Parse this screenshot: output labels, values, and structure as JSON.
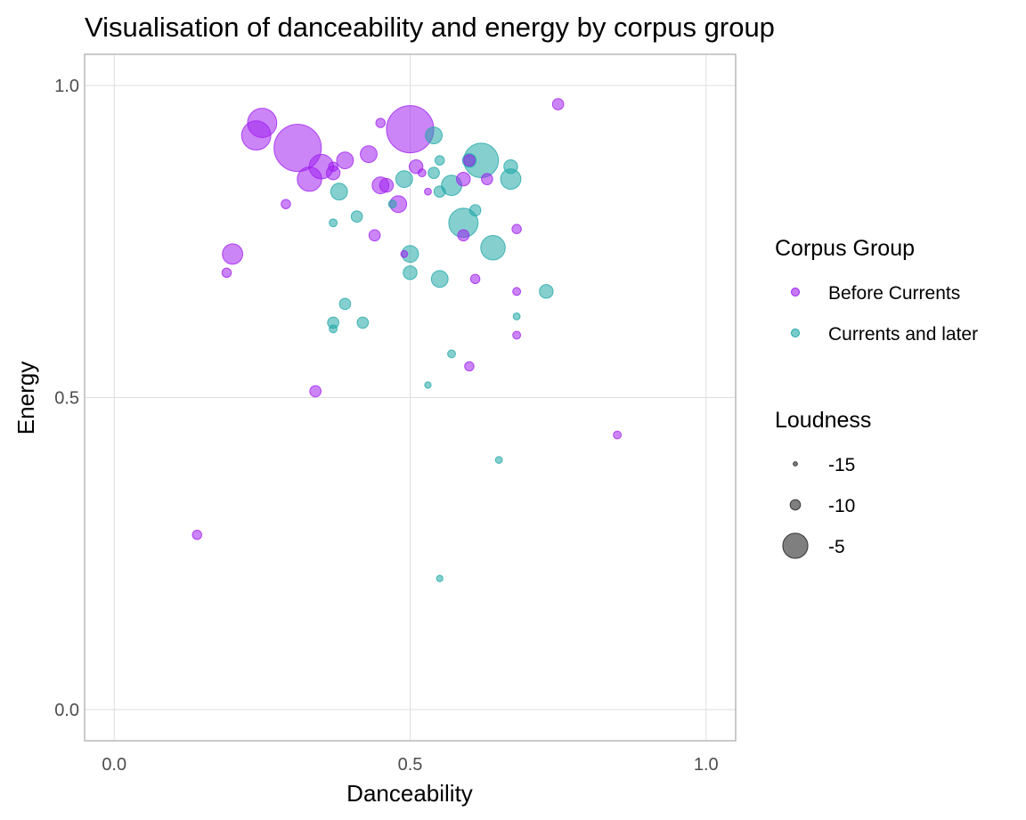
{
  "chart_data": {
    "type": "scatter",
    "title": "Visualisation of danceability and energy by corpus group",
    "xlabel": "Danceability",
    "ylabel": "Energy",
    "xlim": [
      -0.05,
      1.05
    ],
    "ylim": [
      -0.05,
      1.05
    ],
    "x_ticks": [
      0.0,
      0.5,
      1.0
    ],
    "y_ticks": [
      0.0,
      0.5,
      1.0
    ],
    "x_tick_labels": [
      "0.0",
      "0.5",
      "1.0"
    ],
    "y_tick_labels": [
      "0.0",
      "0.5",
      "1.0"
    ],
    "grid": true,
    "legend_placement": "right",
    "color_legend": {
      "title": "Corpus Group",
      "entries": [
        {
          "name": "Before Currents",
          "color": "#a020f0"
        },
        {
          "name": "Currents and later",
          "color": "#20a8a8"
        }
      ]
    },
    "size_legend": {
      "title": "Loudness",
      "entries": [
        {
          "label": "-15",
          "loudness": -15
        },
        {
          "label": "-10",
          "loudness": -10
        },
        {
          "label": "-5",
          "loudness": -5
        }
      ]
    },
    "series": [
      {
        "name": "Before Currents",
        "color": "#a020f0",
        "points": [
          {
            "x": 0.25,
            "y": 0.94,
            "loudness": -7
          },
          {
            "x": 0.24,
            "y": 0.92,
            "loudness": -7
          },
          {
            "x": 0.31,
            "y": 0.9,
            "loudness": -4
          },
          {
            "x": 0.5,
            "y": 0.93,
            "loudness": -4
          },
          {
            "x": 0.35,
            "y": 0.87,
            "loudness": -8
          },
          {
            "x": 0.33,
            "y": 0.85,
            "loudness": -8
          },
          {
            "x": 0.39,
            "y": 0.88,
            "loudness": -10
          },
          {
            "x": 0.43,
            "y": 0.89,
            "loudness": -10
          },
          {
            "x": 0.37,
            "y": 0.86,
            "loudness": -11
          },
          {
            "x": 0.37,
            "y": 0.87,
            "loudness": -13
          },
          {
            "x": 0.45,
            "y": 0.94,
            "loudness": -13
          },
          {
            "x": 0.75,
            "y": 0.97,
            "loudness": -12
          },
          {
            "x": 0.45,
            "y": 0.84,
            "loudness": -10
          },
          {
            "x": 0.46,
            "y": 0.84,
            "loudness": -11
          },
          {
            "x": 0.48,
            "y": 0.81,
            "loudness": -10
          },
          {
            "x": 0.51,
            "y": 0.87,
            "loudness": -11
          },
          {
            "x": 0.52,
            "y": 0.86,
            "loudness": -14
          },
          {
            "x": 0.53,
            "y": 0.83,
            "loudness": -15
          },
          {
            "x": 0.59,
            "y": 0.85,
            "loudness": -11
          },
          {
            "x": 0.6,
            "y": 0.88,
            "loudness": -12
          },
          {
            "x": 0.63,
            "y": 0.85,
            "loudness": -12
          },
          {
            "x": 0.29,
            "y": 0.81,
            "loudness": -13
          },
          {
            "x": 0.44,
            "y": 0.76,
            "loudness": -12
          },
          {
            "x": 0.59,
            "y": 0.76,
            "loudness": -12
          },
          {
            "x": 0.68,
            "y": 0.77,
            "loudness": -13
          },
          {
            "x": 0.2,
            "y": 0.73,
            "loudness": -9
          },
          {
            "x": 0.19,
            "y": 0.7,
            "loudness": -13
          },
          {
            "x": 0.49,
            "y": 0.73,
            "loudness": -15
          },
          {
            "x": 0.61,
            "y": 0.69,
            "loudness": -13
          },
          {
            "x": 0.68,
            "y": 0.67,
            "loudness": -14
          },
          {
            "x": 0.68,
            "y": 0.6,
            "loudness": -14
          },
          {
            "x": 0.6,
            "y": 0.55,
            "loudness": -13
          },
          {
            "x": 0.34,
            "y": 0.51,
            "loudness": -12
          },
          {
            "x": 0.85,
            "y": 0.44,
            "loudness": -14
          },
          {
            "x": 0.14,
            "y": 0.28,
            "loudness": -13
          }
        ]
      },
      {
        "name": "Currents and later",
        "color": "#20a8a8",
        "points": [
          {
            "x": 0.54,
            "y": 0.92,
            "loudness": -10
          },
          {
            "x": 0.62,
            "y": 0.88,
            "loudness": -6
          },
          {
            "x": 0.6,
            "y": 0.88,
            "loudness": -11
          },
          {
            "x": 0.67,
            "y": 0.87,
            "loudness": -11
          },
          {
            "x": 0.67,
            "y": 0.85,
            "loudness": -9
          },
          {
            "x": 0.57,
            "y": 0.84,
            "loudness": -9
          },
          {
            "x": 0.55,
            "y": 0.88,
            "loudness": -13
          },
          {
            "x": 0.54,
            "y": 0.86,
            "loudness": -12
          },
          {
            "x": 0.55,
            "y": 0.83,
            "loudness": -12
          },
          {
            "x": 0.49,
            "y": 0.85,
            "loudness": -10
          },
          {
            "x": 0.38,
            "y": 0.83,
            "loudness": -10
          },
          {
            "x": 0.47,
            "y": 0.81,
            "loudness": -14
          },
          {
            "x": 0.41,
            "y": 0.79,
            "loudness": -12
          },
          {
            "x": 0.37,
            "y": 0.78,
            "loudness": -14
          },
          {
            "x": 0.59,
            "y": 0.78,
            "loudness": -7
          },
          {
            "x": 0.61,
            "y": 0.8,
            "loudness": -12
          },
          {
            "x": 0.64,
            "y": 0.74,
            "loudness": -8
          },
          {
            "x": 0.5,
            "y": 0.73,
            "loudness": -10
          },
          {
            "x": 0.5,
            "y": 0.7,
            "loudness": -11
          },
          {
            "x": 0.55,
            "y": 0.69,
            "loudness": -10
          },
          {
            "x": 0.73,
            "y": 0.67,
            "loudness": -11
          },
          {
            "x": 0.39,
            "y": 0.65,
            "loudness": -12
          },
          {
            "x": 0.37,
            "y": 0.62,
            "loudness": -12
          },
          {
            "x": 0.37,
            "y": 0.61,
            "loudness": -14
          },
          {
            "x": 0.42,
            "y": 0.62,
            "loudness": -12
          },
          {
            "x": 0.68,
            "y": 0.63,
            "loudness": -15
          },
          {
            "x": 0.57,
            "y": 0.57,
            "loudness": -14
          },
          {
            "x": 0.53,
            "y": 0.52,
            "loudness": -16
          },
          {
            "x": 0.65,
            "y": 0.4,
            "loudness": -15
          },
          {
            "x": 0.55,
            "y": 0.21,
            "loudness": -16
          }
        ]
      }
    ]
  }
}
